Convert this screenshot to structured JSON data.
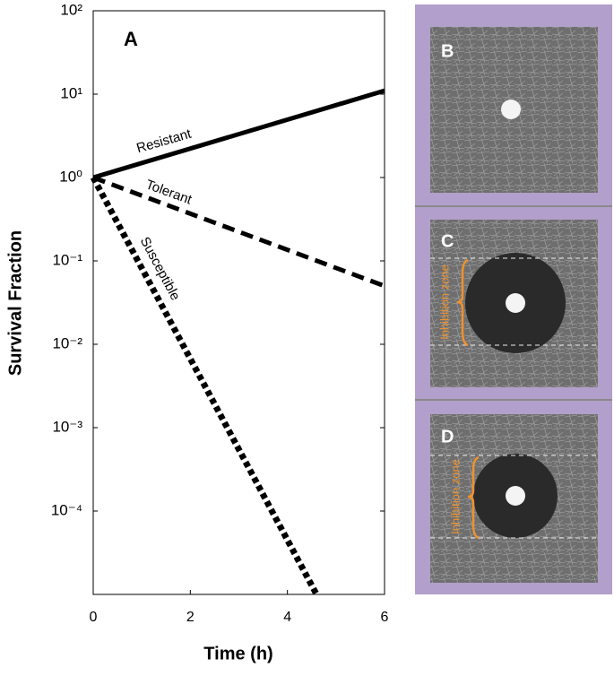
{
  "chart_data": {
    "type": "line",
    "panel_label": "A",
    "xlabel": "Time (h)",
    "ylabel": "Survival Fraction",
    "xlim": [
      0,
      6
    ],
    "ylim": [
      1e-05,
      100
    ],
    "log_y": true,
    "xticks": [
      0,
      2,
      4,
      6
    ],
    "yticks": [
      {
        "value": 100,
        "label": "10²"
      },
      {
        "value": 10,
        "label": "10¹"
      },
      {
        "value": 1,
        "label": "10⁰"
      },
      {
        "value": 0.1,
        "label": "10⁻¹"
      },
      {
        "value": 0.01,
        "label": "10⁻²"
      },
      {
        "value": 0.001,
        "label": "10⁻³"
      },
      {
        "value": 0.0001,
        "label": "10⁻⁴"
      }
    ],
    "series": [
      {
        "name": "Resistant",
        "color": "#000000",
        "linestyle": "solid",
        "x": [
          0,
          6
        ],
        "values": [
          1,
          11
        ]
      },
      {
        "name": "Tolerant",
        "color": "#000000",
        "linestyle": "dashed",
        "x": [
          0,
          6
        ],
        "values": [
          1,
          0.05
        ]
      },
      {
        "name": "Susceptible",
        "color": "#000000",
        "linestyle": "dotted",
        "x": [
          0,
          4.6
        ],
        "values": [
          1,
          1e-05
        ]
      }
    ]
  },
  "panels": [
    {
      "label": "B"
    },
    {
      "label": "C",
      "annotation": "Inhibition zone"
    },
    {
      "label": "D",
      "annotation": "Inhibition zone"
    }
  ]
}
